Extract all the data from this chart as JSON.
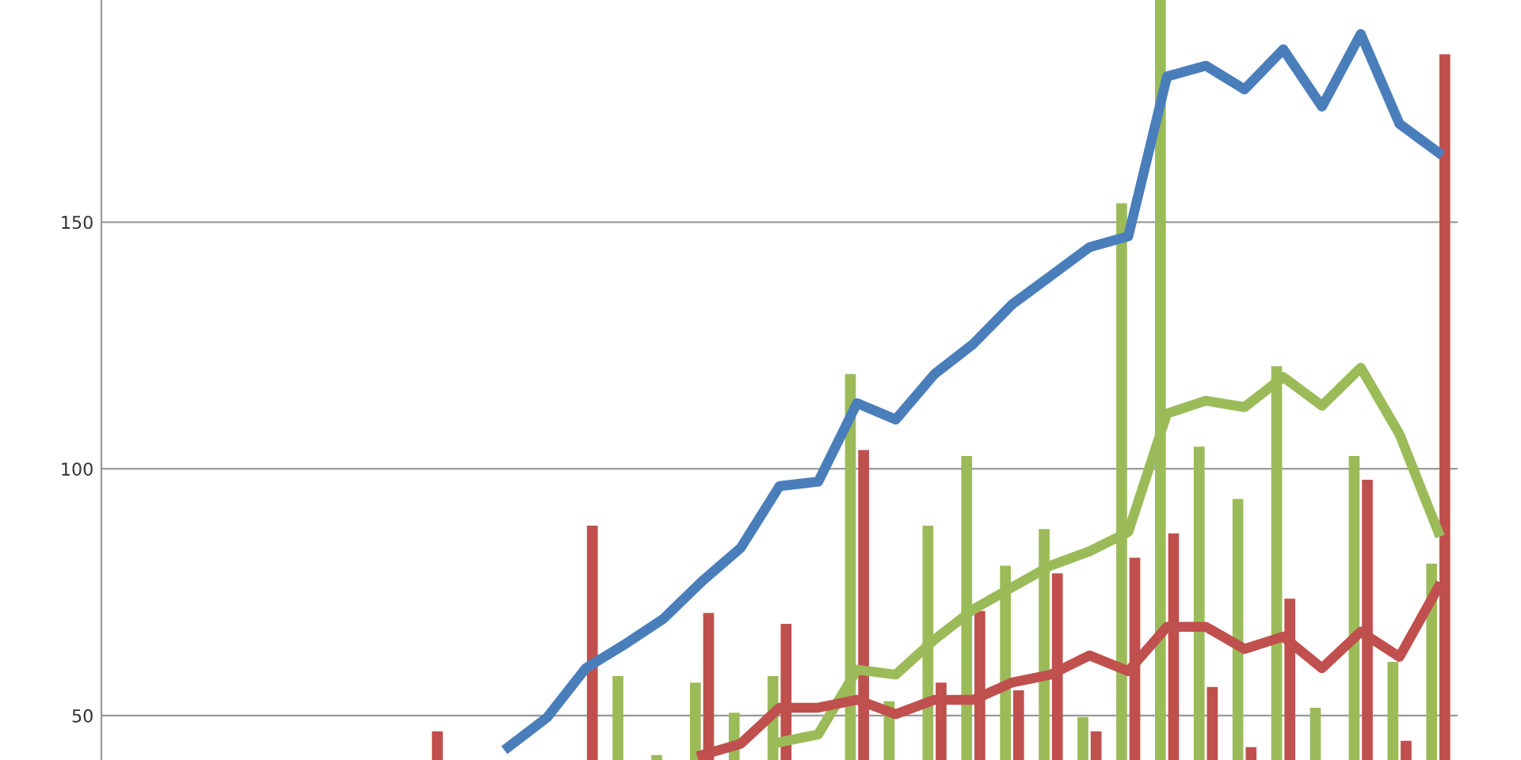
{
  "chart_data": {
    "type": "bar",
    "categories": [
      null,
      null,
      null,
      null,
      null,
      null,
      null,
      null,
      null,
      null,
      null,
      null,
      null,
      null,
      null,
      null,
      null,
      null,
      null,
      null,
      null,
      null,
      null,
      null,
      null,
      null,
      null,
      null,
      null,
      null,
      null,
      null,
      null,
      null,
      null
    ],
    "series": [
      {
        "color": "#9bbb59",
        "values": [
          null,
          null,
          null,
          null,
          null,
          null,
          null,
          null,
          null,
          null,
          null,
          null,
          null,
          58,
          42,
          56.7,
          50.6,
          58,
          null,
          119.2,
          52.9,
          88.5,
          102.6,
          80.4,
          87.8,
          49.7,
          153.8,
          195,
          104.5,
          93.9,
          120.8,
          51.6,
          102.6,
          60.9,
          80.8
        ]
      },
      {
        "color": "#c0504d",
        "values": [
          null,
          null,
          null,
          null,
          null,
          null,
          null,
          null,
          46.8,
          null,
          null,
          null,
          88.5,
          null,
          null,
          70.8,
          null,
          68.6,
          null,
          103.8,
          null,
          56.7,
          71.2,
          55.1,
          78.8,
          46.8,
          82,
          86.9,
          55.8,
          43.6,
          73.7,
          null,
          97.8,
          44.9,
          184
        ]
      },
      {
        "type": "line",
        "color": "#4a7ebb",
        "values": [
          null,
          null,
          null,
          null,
          null,
          null,
          null,
          null,
          null,
          null,
          43.6,
          49.6,
          59.6,
          64.4,
          69.6,
          77.2,
          84,
          96.5,
          97.4,
          113.3,
          110,
          119.2,
          125.3,
          133.3,
          139.1,
          144.9,
          147.1,
          179.5,
          181.7,
          176.9,
          185,
          173.4,
          188.1,
          169.9,
          164.1
        ]
      },
      {
        "type": "line",
        "color": "#9bbb59",
        "values": [
          null,
          null,
          null,
          null,
          null,
          null,
          null,
          null,
          null,
          null,
          null,
          null,
          null,
          null,
          null,
          null,
          null,
          44.6,
          46.2,
          59.3,
          58.3,
          65.4,
          71.5,
          76,
          80.4,
          83.3,
          87.2,
          111.2,
          113.8,
          112.5,
          118.6,
          112.8,
          120.5,
          107,
          87.2
        ]
      },
      {
        "type": "line",
        "color": "#c0504d",
        "values": [
          null,
          null,
          null,
          null,
          null,
          null,
          null,
          null,
          null,
          null,
          null,
          null,
          null,
          null,
          null,
          42,
          44.3,
          51.6,
          51.6,
          53.2,
          50.3,
          53.2,
          53.2,
          56.7,
          58.3,
          62.2,
          59,
          68,
          68,
          63.5,
          66,
          59.6,
          67,
          61.9,
          76
        ]
      }
    ],
    "ylim": [
      41,
      195
    ],
    "yticks": [
      50,
      100,
      150
    ],
    "grid": "y",
    "tick_labels": "y",
    "legend": false
  }
}
